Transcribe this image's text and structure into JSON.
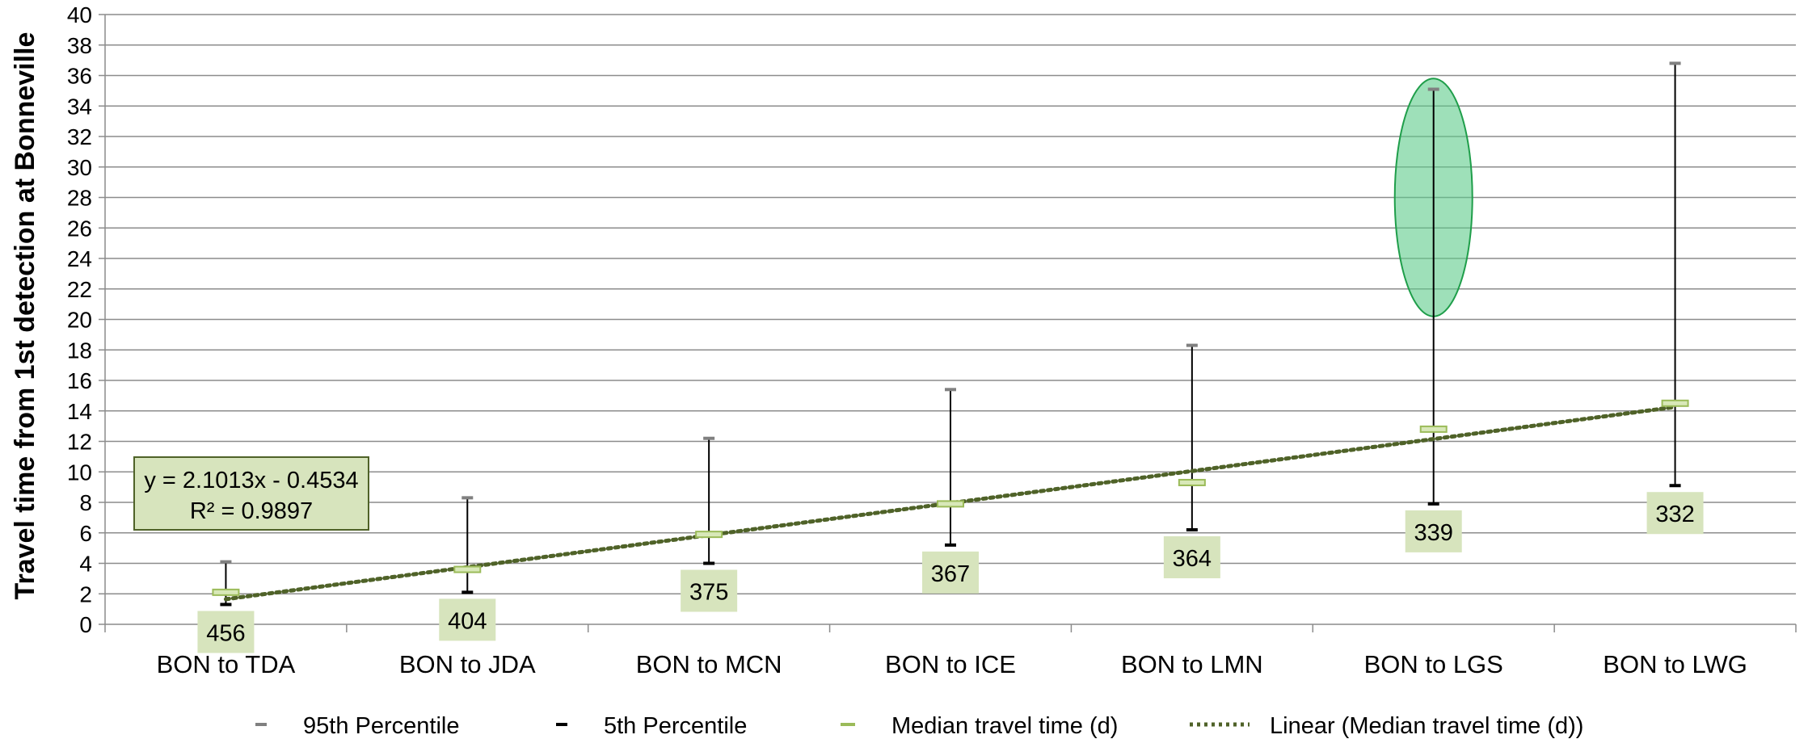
{
  "chart_data": {
    "type": "box",
    "ylabel": "Travel time from 1st detection at Bonneville",
    "xlabel": "",
    "ylim": [
      0,
      40
    ],
    "ytick_step": 2,
    "grid": true,
    "categories": [
      "BON to TDA",
      "BON to JDA",
      "BON to MCN",
      "BON to ICE",
      "BON to LMN",
      "BON to LGS",
      "BON to LWG"
    ],
    "series": [
      {
        "name": "95th Percentile",
        "values": [
          4.1,
          8.3,
          12.2,
          15.4,
          18.3,
          35.1,
          36.8
        ]
      },
      {
        "name": "5th Percentile",
        "values": [
          1.3,
          2.1,
          4.0,
          5.2,
          6.2,
          7.9,
          9.1
        ]
      },
      {
        "name": "Median travel time (d)",
        "values": [
          2.1,
          3.6,
          5.9,
          7.9,
          9.3,
          12.8,
          14.5
        ]
      }
    ],
    "counts": [
      "456",
      "404",
      "375",
      "367",
      "364",
      "339",
      "332"
    ],
    "trendline": {
      "name": "Linear (Median travel time (d))",
      "slope": 2.1013,
      "intercept": -0.4534,
      "equation": "y = 2.1013x - 0.4534",
      "r2": "R² = 0.9897"
    },
    "highlight": {
      "category": "BON to LGS",
      "y_range": [
        20.2,
        35.8
      ]
    },
    "legend_position": "bottom",
    "colors": {
      "p95": "#808080",
      "p5": "#000000",
      "median_fill": "#d8e8b8",
      "median_stroke": "#9bbb59",
      "trend": "#4f6228",
      "count_box": "#d7e4bd",
      "eq_box_fill": "#d7e4bd",
      "eq_box_stroke": "#4f6228",
      "grid": "#8c8c8c",
      "ellipse_fill": "#5ecb8a",
      "ellipse_stroke": "#1f9e4a"
    }
  }
}
